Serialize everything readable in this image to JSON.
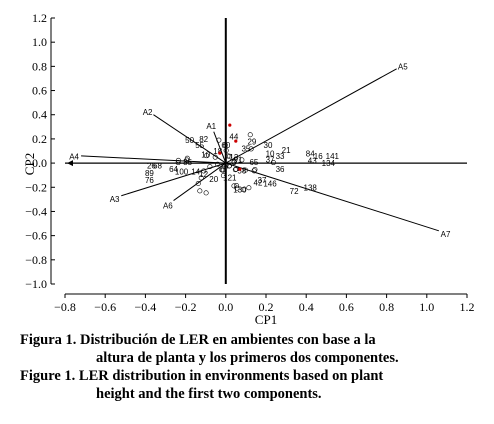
{
  "chart_data": {
    "type": "scatter",
    "title": "",
    "xlabel": "CP1",
    "ylabel": "CP2",
    "xlim": [
      -0.8,
      1.2
    ],
    "ylim": [
      -1.0,
      1.2
    ],
    "xticks": [
      "−0.8",
      "−0.6",
      "−0.4",
      "−0.2",
      "0.0",
      "0.2",
      "0.4",
      "0.6",
      "0.8",
      "1.0",
      "1.2"
    ],
    "yticks": [
      "−1.0",
      "−0.8",
      "−0.6",
      "−0.4",
      "−0.2",
      "0.0",
      "0.2",
      "0.4",
      "0.6",
      "0.8",
      "1.0",
      "1.2"
    ],
    "vectors": [
      {
        "label": "A1",
        "x": -0.06,
        "y": 0.26
      },
      {
        "label": "A2",
        "x": -0.36,
        "y": 0.4
      },
      {
        "label": "A3",
        "x": -0.52,
        "y": -0.27
      },
      {
        "label": "A4",
        "x": -0.72,
        "y": 0.06
      },
      {
        "label": "A5",
        "x": 0.85,
        "y": 0.78
      },
      {
        "label": "A6",
        "x": -0.26,
        "y": -0.31
      },
      {
        "label": "A7",
        "x": 1.06,
        "y": -0.56
      }
    ],
    "points": [
      {
        "label": "141",
        "x": 0.53,
        "y": 0.06
      },
      {
        "label": "84",
        "x": 0.42,
        "y": 0.08
      },
      {
        "label": "16",
        "x": 0.46,
        "y": 0.06
      },
      {
        "label": "43",
        "x": 0.43,
        "y": 0.02
      },
      {
        "label": "134",
        "x": 0.51,
        "y": 0.0
      },
      {
        "label": "36",
        "x": 0.27,
        "y": -0.05
      },
      {
        "label": "138",
        "x": 0.42,
        "y": -0.2
      },
      {
        "label": "72",
        "x": 0.34,
        "y": -0.23
      },
      {
        "label": "146",
        "x": 0.22,
        "y": -0.17
      },
      {
        "label": "42",
        "x": 0.16,
        "y": -0.16
      },
      {
        "label": "37",
        "x": 0.18,
        "y": -0.14
      },
      {
        "label": "130",
        "x": 0.07,
        "y": -0.22
      },
      {
        "label": "21",
        "x": 0.3,
        "y": 0.11
      },
      {
        "label": "33",
        "x": 0.27,
        "y": 0.06
      },
      {
        "label": "37",
        "x": 0.22,
        "y": 0.03
      },
      {
        "label": "10",
        "x": 0.22,
        "y": 0.08
      },
      {
        "label": "30",
        "x": 0.21,
        "y": 0.15
      },
      {
        "label": "29",
        "x": 0.13,
        "y": 0.18
      },
      {
        "label": "44",
        "x": 0.04,
        "y": 0.22
      },
      {
        "label": "82",
        "x": -0.11,
        "y": 0.2
      },
      {
        "label": "50",
        "x": -0.18,
        "y": 0.19
      },
      {
        "label": "55",
        "x": -0.13,
        "y": 0.15
      },
      {
        "label": "85",
        "x": -0.19,
        "y": 0.01
      },
      {
        "label": "26",
        "x": -0.37,
        "y": -0.02
      },
      {
        "label": "68",
        "x": -0.34,
        "y": -0.02
      },
      {
        "label": "64",
        "x": -0.26,
        "y": -0.05
      },
      {
        "label": "89",
        "x": -0.38,
        "y": -0.08
      },
      {
        "label": "76",
        "x": -0.38,
        "y": -0.14
      },
      {
        "label": "100",
        "x": -0.22,
        "y": -0.07
      },
      {
        "label": "14",
        "x": -0.15,
        "y": -0.07
      },
      {
        "label": "12",
        "x": -0.11,
        "y": -0.09
      },
      {
        "label": "58",
        "x": 0.08,
        "y": -0.06
      },
      {
        "label": "121",
        "x": 0.02,
        "y": -0.12
      },
      {
        "label": "20",
        "x": -0.06,
        "y": -0.13
      },
      {
        "label": "10",
        "x": -0.1,
        "y": 0.07
      },
      {
        "label": "18",
        "x": -0.04,
        "y": 0.1
      },
      {
        "label": "60",
        "x": 0.0,
        "y": 0.15
      },
      {
        "label": "35",
        "x": 0.1,
        "y": 0.12
      },
      {
        "label": "91",
        "x": 0.06,
        "y": 0.03
      },
      {
        "label": "47",
        "x": 0.0,
        "y": -0.02
      },
      {
        "label": "13",
        "x": 0.04,
        "y": 0.05
      },
      {
        "label": "65",
        "x": 0.14,
        "y": 0.01
      }
    ]
  }
}
